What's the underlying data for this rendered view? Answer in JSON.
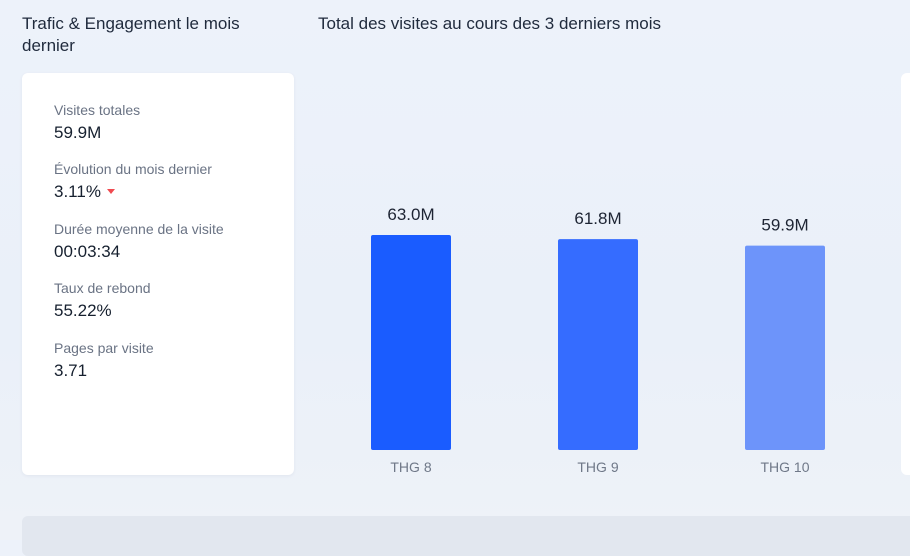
{
  "left_section": {
    "title": "Trafic & Engagement le mois dernier"
  },
  "metrics": [
    {
      "label": "Visites totales",
      "value": "59.9M",
      "trend": ""
    },
    {
      "label": "Évolution du mois dernier",
      "value": "3.11%",
      "trend": "down"
    },
    {
      "label": "Durée moyenne de la visite",
      "value": "00:03:34",
      "trend": ""
    },
    {
      "label": "Taux de rebond",
      "value": "55.22%",
      "trend": ""
    },
    {
      "label": "Pages par visite",
      "value": "3.71",
      "trend": ""
    }
  ],
  "colors": {
    "trend_down": "#f04a50"
  },
  "chart_data": {
    "type": "bar",
    "title": "Total des visites au cours des 3 derniers mois",
    "categories": [
      "THG 8",
      "THG 9",
      "THG 10"
    ],
    "values": [
      63.0,
      61.8,
      59.9
    ],
    "value_labels": [
      "63.0M",
      "61.8M",
      "59.9M"
    ],
    "colors": [
      "#1a5cff",
      "#356cff",
      "#6d94fa"
    ],
    "xlabel": "",
    "ylabel": "",
    "ylim": [
      0,
      63.0
    ],
    "grid": false,
    "legend": "none"
  }
}
